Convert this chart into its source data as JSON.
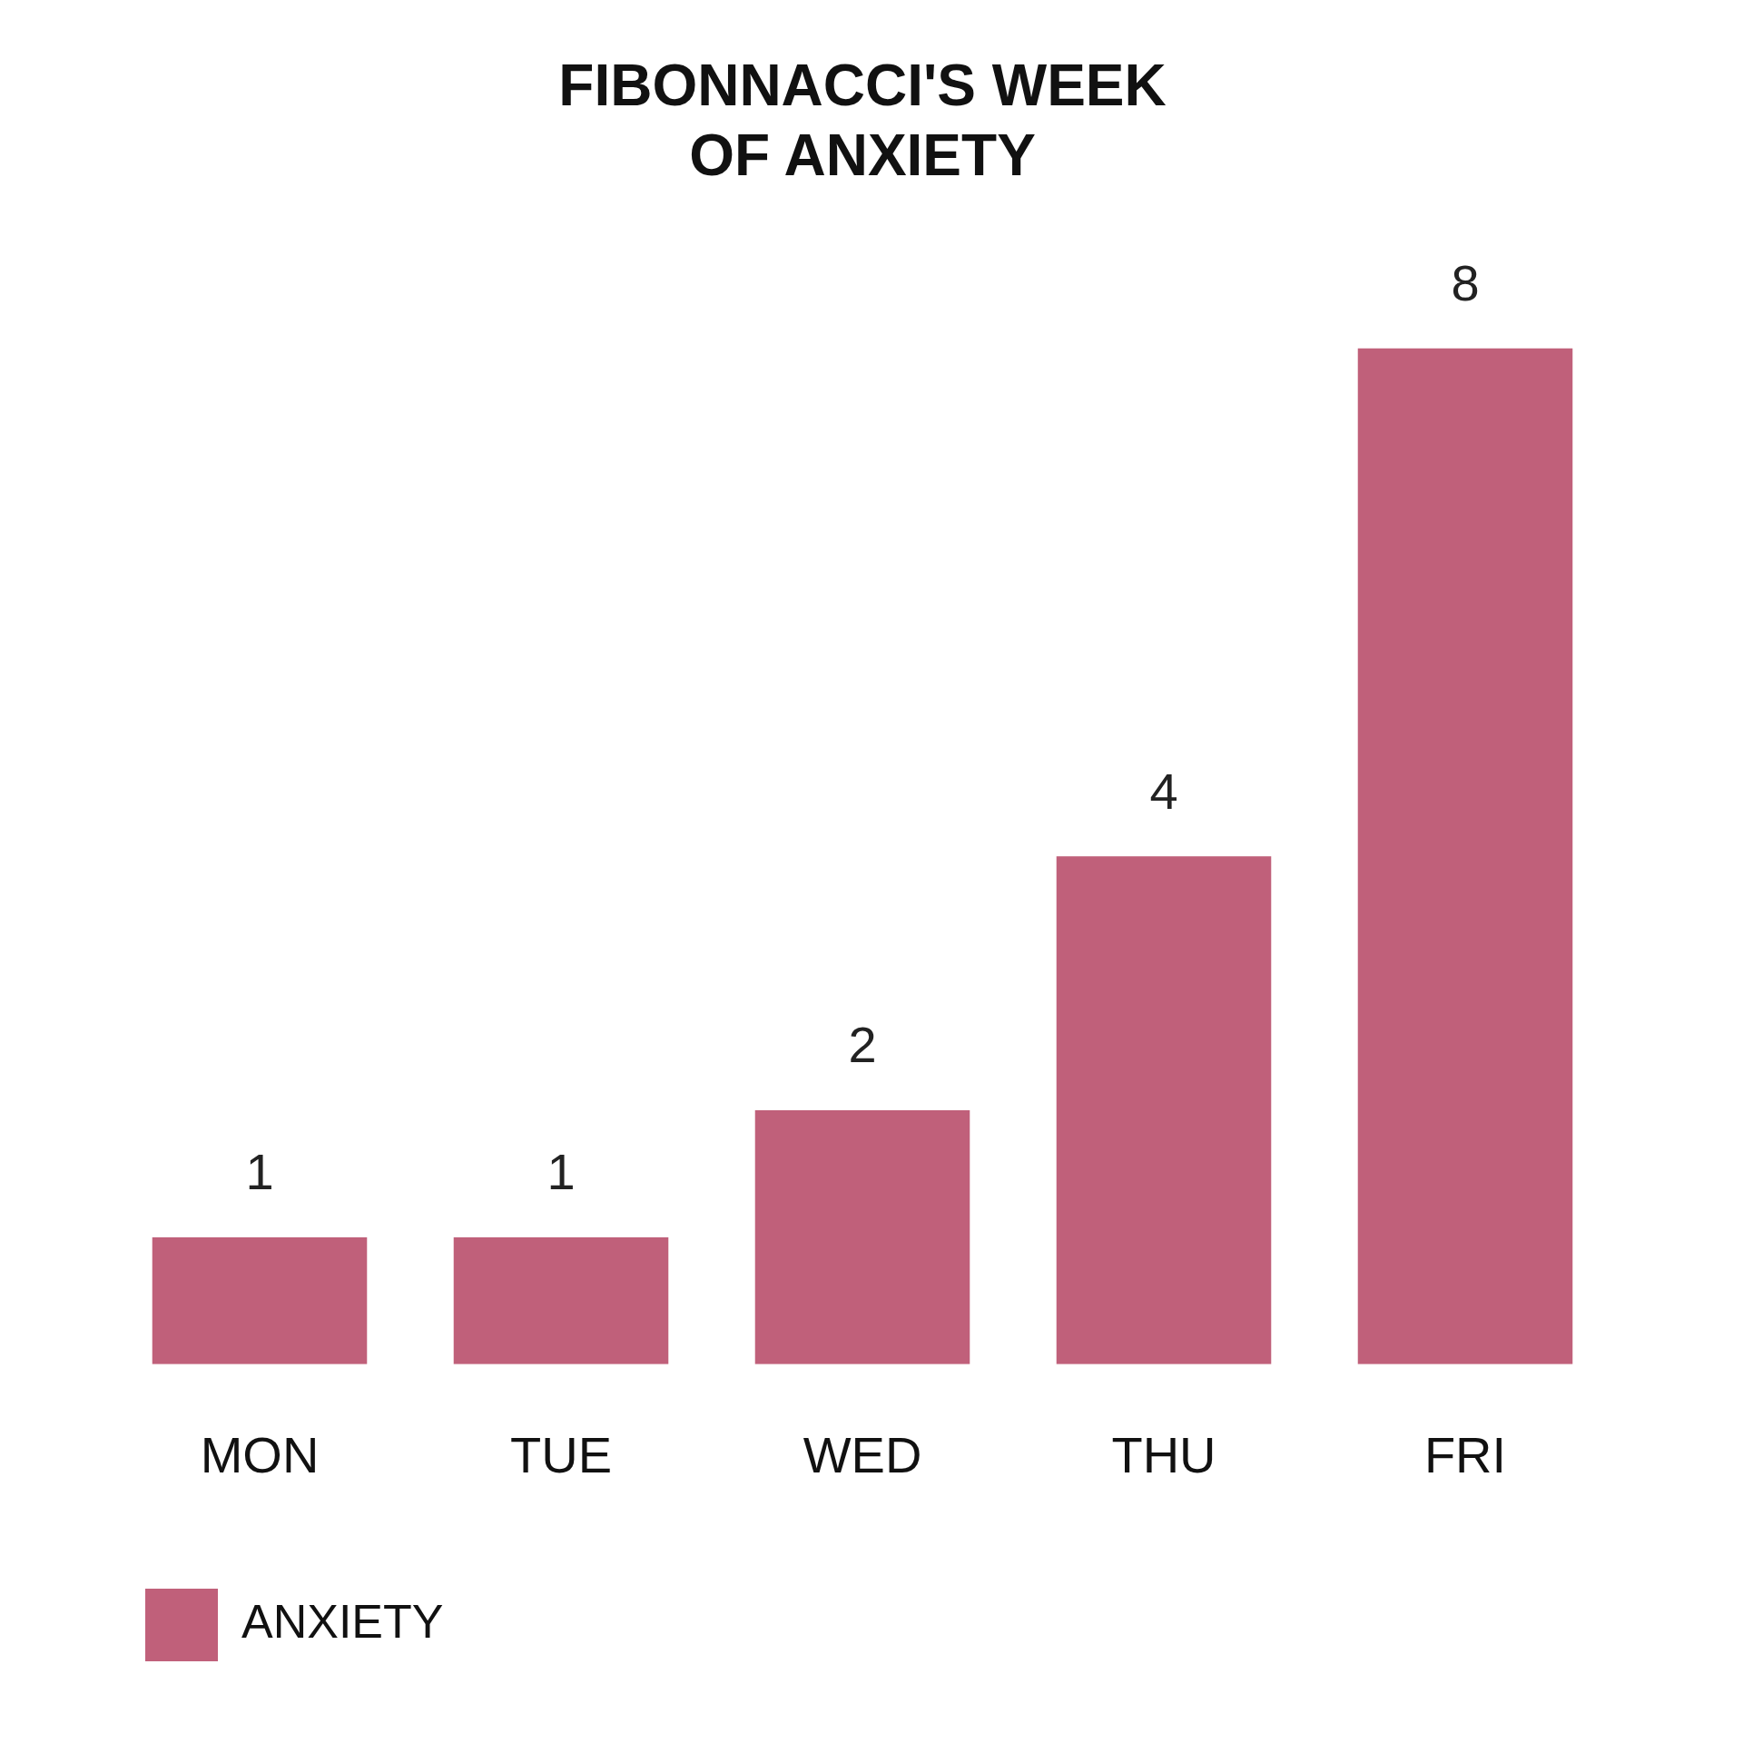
{
  "chart_data": {
    "type": "bar",
    "title": "FIBONNACCI'S WEEK\nOF ANXIETY",
    "categories": [
      "MON",
      "TUE",
      "WED",
      "THU",
      "FRI"
    ],
    "series": [
      {
        "name": "ANXIETY",
        "color": "#c0607a",
        "values": [
          1,
          1,
          2,
          4,
          8
        ]
      }
    ],
    "data_labels": true,
    "grid": false,
    "legend": "bottom left",
    "tick_labels": "x"
  }
}
